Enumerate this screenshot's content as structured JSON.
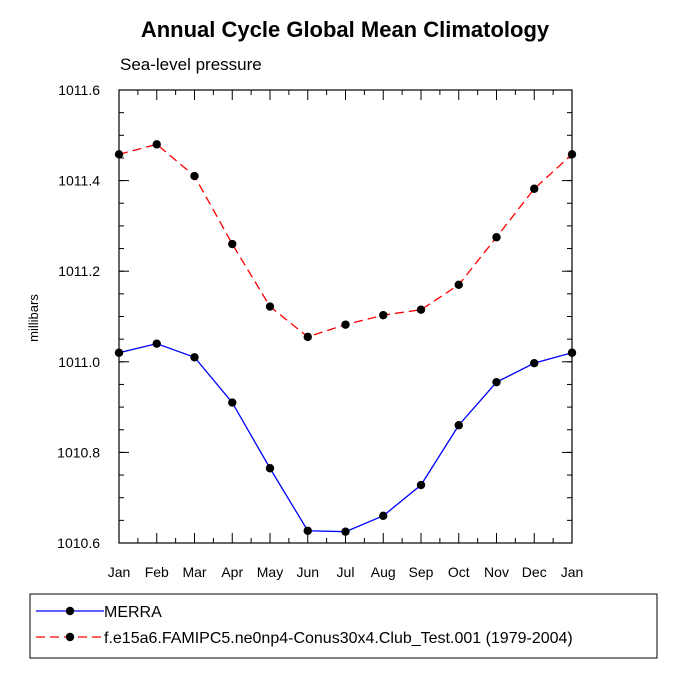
{
  "chart_data": {
    "type": "line",
    "title": "Annual Cycle Global Mean Climatology",
    "subtitle": "Sea-level pressure",
    "xlabel": "",
    "ylabel": "millibars",
    "categories": [
      "Jan",
      "Feb",
      "Mar",
      "Apr",
      "May",
      "Jun",
      "Jul",
      "Aug",
      "Sep",
      "Oct",
      "Nov",
      "Dec",
      "Jan"
    ],
    "ylim": [
      1010.6,
      1011.6
    ],
    "yticks": [
      "1010.6",
      "1010.8",
      "1011.0",
      "1011.2",
      "1011.4",
      "1011.6"
    ],
    "grid": false,
    "legend_position": "bottom",
    "series": [
      {
        "name": "MERRA",
        "color": "#0000ff",
        "line_style": "solid",
        "values": [
          1011.02,
          1011.04,
          1011.01,
          1010.91,
          1010.765,
          1010.627,
          1010.625,
          1010.66,
          1010.728,
          1010.86,
          1010.955,
          1010.997,
          1011.02
        ]
      },
      {
        "name": "f.e15a6.FAMIPC5.ne0np4-Conus30x4.Club_Test.001 (1979-2004)",
        "color": "#ff0000",
        "line_style": "dashed",
        "values": [
          1011.458,
          1011.48,
          1011.41,
          1011.26,
          1011.122,
          1011.055,
          1011.082,
          1011.103,
          1011.115,
          1011.17,
          1011.275,
          1011.382,
          1011.458
        ]
      }
    ]
  }
}
